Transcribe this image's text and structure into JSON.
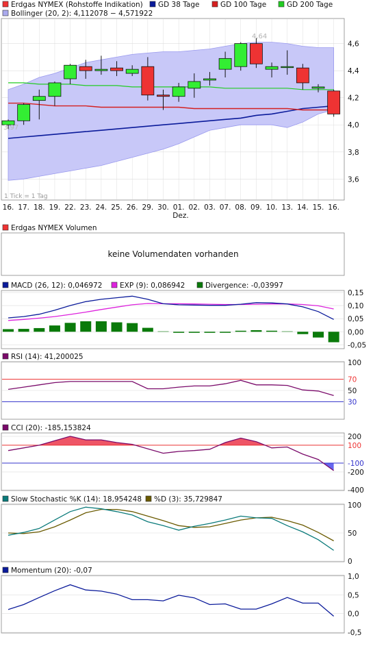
{
  "colors": {
    "up": "#33ee33",
    "down": "#ee3333",
    "gd38": "#0a1a9a",
    "gd100": "#d42020",
    "gd200": "#22cc22",
    "band_fill": "#c8c8f8",
    "band_line": "#9999ee",
    "macd": "#0a1a9a",
    "signal": "#dd22dd",
    "histogram": "#0a7a0a",
    "rsi": "#7a0a6a",
    "cci": "#7a0a6a",
    "cci_fill_pos": "#ee5566",
    "cci_fill_neg": "#6666ee",
    "stoch_k": "#0a7a7a",
    "stoch_d": "#6a5a00",
    "momentum": "#0a1a9a",
    "ref_red": "#ee3333",
    "ref_blue": "#3333cc",
    "grid": "#dddddd",
    "frame": "#888888"
  },
  "price_panel": {
    "legend": [
      {
        "label": "Erdgas NYMEX (Rohstoffe Indikation)",
        "color": "#ee3333"
      },
      {
        "label": "GD 38 Tage",
        "color": "#0a1a9a"
      },
      {
        "label": "GD 100 Tage",
        "color": "#d42020"
      },
      {
        "label": "GD 200 Tage",
        "color": "#22cc22"
      },
      {
        "label": "Bollinger (20, 2): 4,112078 − 4,571922",
        "color": "#aaaaee"
      }
    ],
    "min_label": "3,97",
    "max_label": "4,64",
    "tick_note": "1 Tick = 1 Tag",
    "month_label": "Dez."
  },
  "volume_panel": {
    "legend": "Erdgas NYMEX Volumen",
    "message": "keine Volumendaten vorhanden"
  },
  "macd_panel": {
    "legend_macd": "MACD (26, 12): 0,046972",
    "legend_signal": "EXP (9): 0,086942",
    "legend_div": "Divergence: -0,03997"
  },
  "rsi_panel": {
    "legend": "RSI (14): 41,200025"
  },
  "cci_panel": {
    "legend": "CCI (20): -185,153824"
  },
  "stoch_panel": {
    "legend_k": "Slow Stochastic %K (14): 18,954248",
    "legend_d": "%D (3): 35,729847"
  },
  "momentum_panel": {
    "legend": "Momentum (20): -0,07"
  },
  "chart_data": [
    {
      "type": "candlestick",
      "title": "Erdgas NYMEX (Rohstoffe Indikation)",
      "categories": [
        "16.",
        "17.",
        "18.",
        "19.",
        "22.",
        "23.",
        "24.",
        "25.",
        "26.",
        "29.",
        "30.",
        "01.",
        "02.",
        "03.",
        "07.",
        "08.",
        "09.",
        "10.",
        "13.",
        "14.",
        "15.",
        "16."
      ],
      "ylim": [
        3.45,
        4.78
      ],
      "yticks": [
        "3,6",
        "3,8",
        "4,0",
        "4,2",
        "4,4",
        "4,6"
      ],
      "ytick_values": [
        3.6,
        3.8,
        4.0,
        4.2,
        4.4,
        4.6
      ],
      "open": [
        4.0,
        4.03,
        4.18,
        4.21,
        4.34,
        4.43,
        4.4,
        4.42,
        4.38,
        4.43,
        4.22,
        4.21,
        4.27,
        4.33,
        4.41,
        4.43,
        4.6,
        4.41,
        4.43,
        4.42,
        4.27,
        4.25
      ],
      "close": [
        4.03,
        4.15,
        4.21,
        4.31,
        4.44,
        4.4,
        4.41,
        4.4,
        4.41,
        4.22,
        4.21,
        4.28,
        4.32,
        4.34,
        4.49,
        4.6,
        4.45,
        4.43,
        4.43,
        4.31,
        4.28,
        4.08
      ],
      "high": [
        4.04,
        4.16,
        4.26,
        4.32,
        4.45,
        4.48,
        4.51,
        4.47,
        4.44,
        4.5,
        4.26,
        4.31,
        4.38,
        4.39,
        4.54,
        4.61,
        4.64,
        4.46,
        4.55,
        4.45,
        4.3,
        4.26
      ],
      "low": [
        3.97,
        4.0,
        4.04,
        4.14,
        4.3,
        4.34,
        4.37,
        4.36,
        4.36,
        4.18,
        4.11,
        4.17,
        4.2,
        4.29,
        4.35,
        4.4,
        4.42,
        4.35,
        4.37,
        4.26,
        4.24,
        4.06
      ],
      "series": [
        {
          "name": "GD 38 Tage",
          "values": [
            3.9,
            3.91,
            3.92,
            3.93,
            3.94,
            3.95,
            3.96,
            3.97,
            3.98,
            3.99,
            4.0,
            4.01,
            4.02,
            4.03,
            4.04,
            4.05,
            4.07,
            4.08,
            4.1,
            4.12,
            4.13,
            4.14
          ]
        },
        {
          "name": "GD 100 Tage",
          "values": [
            4.16,
            4.16,
            4.15,
            4.14,
            4.14,
            4.14,
            4.13,
            4.13,
            4.13,
            4.13,
            4.13,
            4.13,
            4.12,
            4.12,
            4.12,
            4.12,
            4.12,
            4.12,
            4.12,
            4.11,
            4.11,
            4.11
          ]
        },
        {
          "name": "GD 200 Tage",
          "values": [
            4.31,
            4.31,
            4.3,
            4.3,
            4.3,
            4.29,
            4.29,
            4.29,
            4.28,
            4.28,
            4.28,
            4.28,
            4.28,
            4.28,
            4.27,
            4.27,
            4.27,
            4.27,
            4.27,
            4.26,
            4.26,
            4.26
          ]
        },
        {
          "name": "Bollinger oben",
          "values": [
            4.26,
            4.3,
            4.35,
            4.38,
            4.42,
            4.46,
            4.48,
            4.5,
            4.52,
            4.53,
            4.54,
            4.54,
            4.55,
            4.56,
            4.58,
            4.6,
            4.61,
            4.61,
            4.6,
            4.58,
            4.57,
            4.57
          ]
        },
        {
          "name": "Bollinger unten",
          "values": [
            3.59,
            3.6,
            3.62,
            3.64,
            3.66,
            3.68,
            3.7,
            3.73,
            3.76,
            3.79,
            3.82,
            3.86,
            3.91,
            3.96,
            3.98,
            4.0,
            4.0,
            4.0,
            3.98,
            4.02,
            4.08,
            4.11
          ]
        }
      ]
    },
    {
      "type": "line",
      "title": "MACD (26, 12)",
      "ylim": [
        -0.062,
        0.155
      ],
      "yticks": [
        "-0,05",
        "0,00",
        "0,05",
        "0,10",
        "0,15"
      ],
      "ytick_values": [
        -0.05,
        0.0,
        0.05,
        0.1,
        0.15
      ],
      "series": [
        {
          "name": "MACD (26, 12)",
          "values": [
            0.053,
            0.058,
            0.067,
            0.082,
            0.1,
            0.115,
            0.124,
            0.13,
            0.136,
            0.124,
            0.107,
            0.103,
            0.102,
            0.101,
            0.101,
            0.105,
            0.111,
            0.11,
            0.106,
            0.095,
            0.077,
            0.047
          ]
        },
        {
          "name": "EXP (9)",
          "values": [
            0.043,
            0.047,
            0.052,
            0.058,
            0.066,
            0.075,
            0.085,
            0.094,
            0.103,
            0.108,
            0.107,
            0.107,
            0.106,
            0.105,
            0.104,
            0.104,
            0.105,
            0.106,
            0.106,
            0.104,
            0.099,
            0.087
          ]
        },
        {
          "name": "Divergence",
          "type": "bar",
          "values": [
            0.01,
            0.011,
            0.014,
            0.024,
            0.034,
            0.04,
            0.04,
            0.036,
            0.033,
            0.015,
            0.0,
            -0.004,
            -0.004,
            -0.004,
            -0.003,
            0.001,
            0.006,
            0.004,
            0.0,
            -0.009,
            -0.022,
            -0.04
          ]
        }
      ]
    },
    {
      "type": "line",
      "title": "RSI (14)",
      "ylim": [
        0,
        100
      ],
      "yticks": [
        "30",
        "50",
        "70",
        "100"
      ],
      "ytick_values": [
        30,
        50,
        70,
        100
      ],
      "reference_lines": [
        70,
        30
      ],
      "series": [
        {
          "name": "RSI (14)",
          "values": [
            52,
            56,
            60,
            64,
            66,
            66,
            66,
            66,
            66,
            53,
            53,
            56,
            58,
            58,
            62,
            68,
            60,
            60,
            59,
            51,
            49,
            41
          ]
        }
      ]
    },
    {
      "type": "line",
      "title": "CCI (20)",
      "ylim": [
        -400,
        230
      ],
      "yticks": [
        "-400",
        "-200",
        "-100",
        "100",
        "200"
      ],
      "ytick_values": [
        -400,
        -200,
        -100,
        100,
        200
      ],
      "reference_lines": [
        100,
        -100
      ],
      "series": [
        {
          "name": "CCI (20)",
          "values": [
            40,
            70,
            100,
            150,
            200,
            160,
            160,
            130,
            110,
            60,
            10,
            30,
            40,
            55,
            130,
            180,
            140,
            70,
            80,
            0,
            -60,
            -185
          ]
        }
      ]
    },
    {
      "type": "line",
      "title": "Slow Stochastic",
      "ylim": [
        0,
        100
      ],
      "yticks": [
        "0",
        "50",
        "100"
      ],
      "ytick_values": [
        0,
        50,
        100
      ],
      "series": [
        {
          "name": "Slow Stochastic %K (14)",
          "values": [
            46,
            51,
            58,
            73,
            88,
            96,
            93,
            88,
            82,
            70,
            63,
            55,
            62,
            67,
            73,
            80,
            77,
            76,
            63,
            52,
            38,
            19
          ]
        },
        {
          "name": "%D (3)",
          "values": [
            50,
            49,
            52,
            61,
            73,
            86,
            92,
            92,
            88,
            80,
            72,
            63,
            60,
            61,
            67,
            73,
            77,
            78,
            72,
            64,
            51,
            36
          ]
        }
      ]
    },
    {
      "type": "line",
      "title": "Momentum (20)",
      "ylim": [
        -0.5,
        1.0
      ],
      "yticks": [
        "-0,5",
        "0,0",
        "0,5",
        "1,0"
      ],
      "ytick_values": [
        -0.5,
        0.0,
        0.5,
        1.0
      ],
      "series": [
        {
          "name": "Momentum (20)",
          "values": [
            0.11,
            0.24,
            0.43,
            0.61,
            0.77,
            0.63,
            0.6,
            0.52,
            0.37,
            0.37,
            0.34,
            0.49,
            0.42,
            0.24,
            0.26,
            0.12,
            0.12,
            0.26,
            0.43,
            0.28,
            0.28,
            -0.07
          ]
        }
      ]
    }
  ]
}
